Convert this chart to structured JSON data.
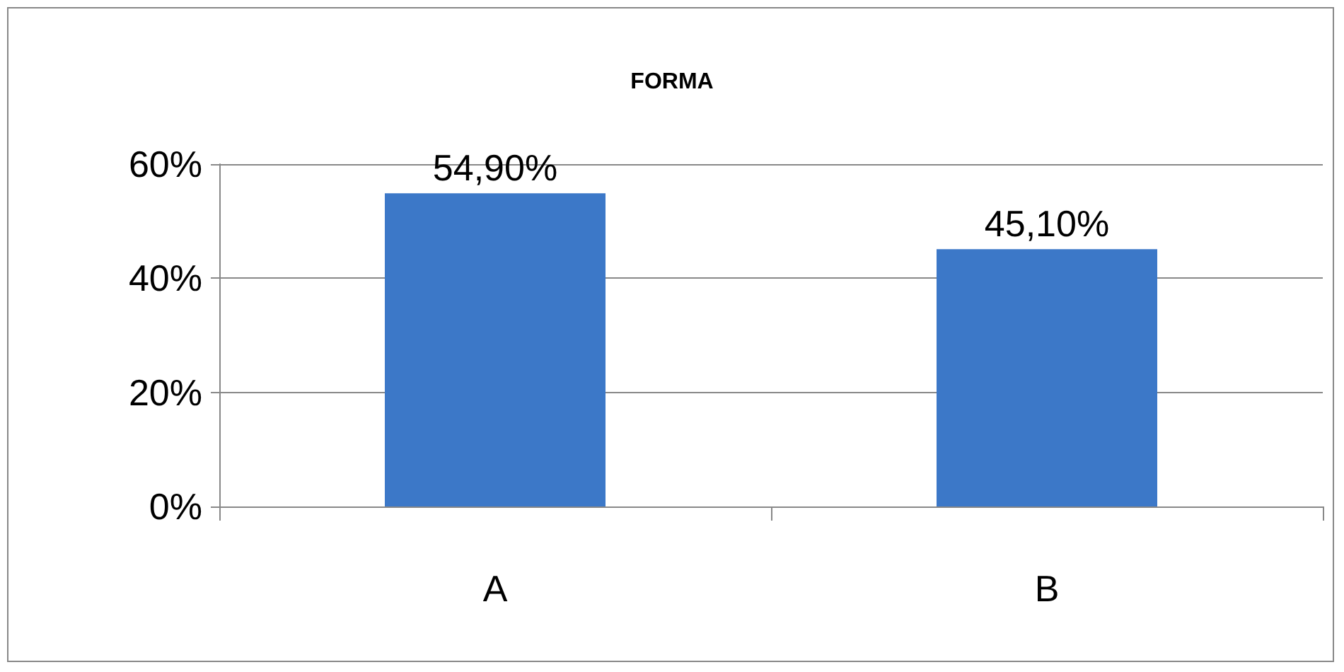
{
  "chart_data": {
    "type": "bar",
    "title": "FORMA",
    "categories": [
      "A",
      "B"
    ],
    "values": [
      54.9,
      45.1
    ],
    "value_labels": [
      "54,90%",
      "45,10%"
    ],
    "color": "#3c78c8",
    "ylim": [
      0,
      60
    ],
    "yticks": [
      {
        "value": 0,
        "label": "0%"
      },
      {
        "value": 20,
        "label": "20%"
      },
      {
        "value": 40,
        "label": "40%"
      },
      {
        "value": 60,
        "label": "60%"
      }
    ],
    "grid": "y"
  }
}
